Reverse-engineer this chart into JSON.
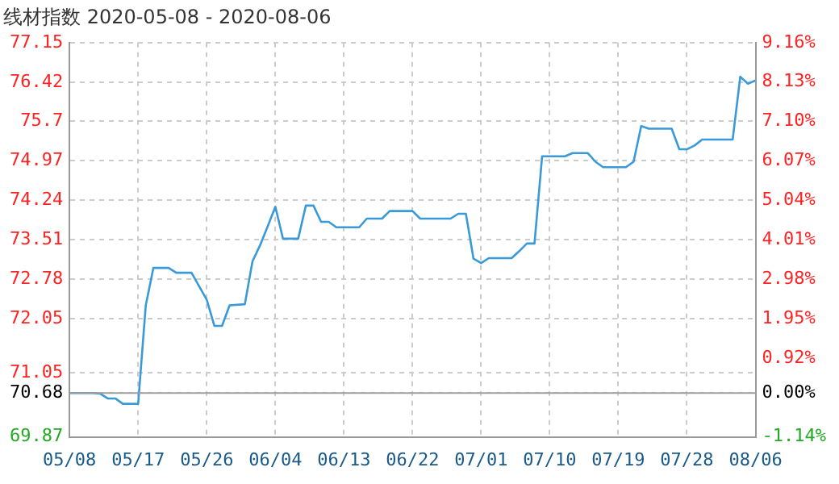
{
  "chart_data": {
    "type": "line",
    "title": "线材指数 2020-05-08 - 2020-08-06",
    "x": [
      "2020-05-08",
      "2020-05-11",
      "2020-05-12",
      "2020-05-13",
      "2020-05-14",
      "2020-05-15",
      "2020-05-17",
      "2020-05-18",
      "2020-05-19",
      "2020-05-21",
      "2020-05-22",
      "2020-05-24",
      "2020-05-26",
      "2020-05-27",
      "2020-05-28",
      "2020-05-29",
      "2020-05-31",
      "2020-06-01",
      "2020-06-02",
      "2020-06-03",
      "2020-06-04",
      "2020-06-05",
      "2020-06-07",
      "2020-06-08",
      "2020-06-09",
      "2020-06-10",
      "2020-06-11",
      "2020-06-12",
      "2020-06-15",
      "2020-06-16",
      "2020-06-18",
      "2020-06-19",
      "2020-06-22",
      "2020-06-23",
      "2020-06-27",
      "2020-06-28",
      "2020-06-29",
      "2020-06-30",
      "2020-07-01",
      "2020-07-02",
      "2020-07-05",
      "2020-07-06",
      "2020-07-07",
      "2020-07-08",
      "2020-07-09",
      "2020-07-12",
      "2020-07-13",
      "2020-07-15",
      "2020-07-16",
      "2020-07-17",
      "2020-07-20",
      "2020-07-21",
      "2020-07-22",
      "2020-07-23",
      "2020-07-26",
      "2020-07-27",
      "2020-07-28",
      "2020-07-29",
      "2020-07-30",
      "2020-08-03",
      "2020-08-04",
      "2020-08-05",
      "2020-08-06"
    ],
    "series": [
      {
        "color": "#3a9ad9",
        "values": [
          70.68,
          70.68,
          70.67,
          70.58,
          70.58,
          70.48,
          70.48,
          72.3,
          72.99,
          72.99,
          72.9,
          72.9,
          72.4,
          71.92,
          71.92,
          72.3,
          72.32,
          73.11,
          73.41,
          73.76,
          74.12,
          73.53,
          73.53,
          74.14,
          74.14,
          73.84,
          73.84,
          73.74,
          73.74,
          73.9,
          73.9,
          74.04,
          74.04,
          73.9,
          73.9,
          73.99,
          73.99,
          73.16,
          73.08,
          73.17,
          73.17,
          73.3,
          73.44,
          73.44,
          75.05,
          75.05,
          75.11,
          75.11,
          74.95,
          74.85,
          74.85,
          74.95,
          75.61,
          75.56,
          75.56,
          75.18,
          75.18,
          75.25,
          75.36,
          75.36,
          76.52,
          76.39,
          76.45
        ]
      }
    ],
    "xlim": [
      "2020-05-08",
      "2020-08-06"
    ],
    "xticks": [
      {
        "value": "2020-05-08",
        "label": "05/08"
      },
      {
        "value": "2020-05-17",
        "label": "05/17"
      },
      {
        "value": "2020-05-26",
        "label": "05/26"
      },
      {
        "value": "2020-06-04",
        "label": "06/04"
      },
      {
        "value": "2020-06-13",
        "label": "06/13"
      },
      {
        "value": "2020-06-22",
        "label": "06/22"
      },
      {
        "value": "2020-07-01",
        "label": "07/01"
      },
      {
        "value": "2020-07-10",
        "label": "07/10"
      },
      {
        "value": "2020-07-19",
        "label": "07/19"
      },
      {
        "value": "2020-07-28",
        "label": "07/28"
      },
      {
        "value": "2020-08-06",
        "label": "08/06"
      }
    ],
    "ylim": [
      69.87,
      77.15
    ],
    "yticks": [
      69.87,
      70.68,
      71.05,
      72.05,
      72.78,
      73.51,
      74.24,
      74.97,
      75.7,
      76.42,
      77.15
    ],
    "y2lim": [
      -1.14,
      9.16
    ],
    "y2ticks": [
      {
        "value": -1.14,
        "label": "-1.14%"
      },
      {
        "value": 0,
        "label": "0.00%"
      },
      {
        "value": 0.92,
        "label": "0.92%"
      },
      {
        "value": 1.95,
        "label": "1.95%"
      },
      {
        "value": 2.98,
        "label": "2.98%"
      },
      {
        "value": 4.01,
        "label": "4.01%"
      },
      {
        "value": 5.04,
        "label": "5.04%"
      },
      {
        "value": 6.07,
        "label": "6.07%"
      },
      {
        "value": 7.1,
        "label": "7.10%"
      },
      {
        "value": 8.13,
        "label": "8.13%"
      },
      {
        "value": 9.16,
        "label": "9.16%"
      }
    ],
    "ref_lines": [
      {
        "axis": "y",
        "value": 70.68,
        "color": "#a0a0a0"
      }
    ],
    "grid": true,
    "legend": false,
    "marker": "none",
    "line_style": "solid"
  }
}
